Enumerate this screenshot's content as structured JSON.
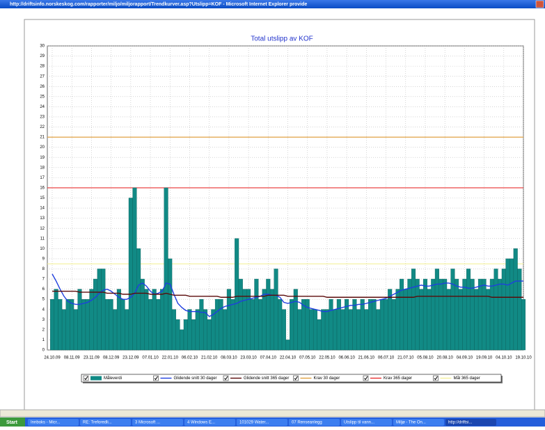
{
  "window": {
    "title": "http://driftsinfo.norskeskog.com/rapporter/miljo/miljorapport/Trendkurver.asp?Utslipp=KOF - Microsoft Internet Explorer provide"
  },
  "taskbar": {
    "start": "Start",
    "items": [
      "Innboks - Micr...",
      "RE: Treforedli...",
      "3 Microsoft ...",
      "4 Windows E...",
      "101029 Water...",
      "07 Renseanlegg",
      "Utslipp til vann...",
      "Miljø - The On...",
      "http://driftsi..."
    ]
  },
  "chart_data": {
    "type": "bar",
    "title": "Total utslipp av KOF",
    "categories": [
      "24.10.09",
      null,
      null,
      null,
      null,
      "08.11.09",
      null,
      null,
      null,
      null,
      "23.11.09",
      null,
      null,
      null,
      null,
      "08.12.09",
      null,
      null,
      null,
      null,
      "23.12.09",
      null,
      null,
      null,
      null,
      "07.01.10",
      null,
      null,
      null,
      null,
      "22.01.10",
      null,
      null,
      null,
      null,
      "06.02.10",
      null,
      null,
      null,
      null,
      "21.02.10",
      null,
      null,
      null,
      null,
      "08.03.10",
      null,
      null,
      null,
      null,
      "23.03.10",
      null,
      null,
      null,
      null,
      "07.04.10",
      null,
      null,
      null,
      null,
      "22.04.10",
      null,
      null,
      null,
      null,
      "07.05.10",
      null,
      null,
      null,
      null,
      "22.05.10",
      null,
      null,
      null,
      null,
      "06.06.10",
      null,
      null,
      null,
      null,
      "21.06.10",
      null,
      null,
      null,
      null,
      "06.07.10",
      null,
      null,
      null,
      null,
      "21.07.10",
      null,
      null,
      null,
      null,
      "05.08.10",
      null,
      null,
      null,
      null,
      "20.08.10",
      null,
      null,
      null,
      null,
      "04.09.10",
      null,
      null,
      null,
      null,
      "19.09.10",
      null,
      null,
      null,
      null,
      "04.10.10",
      null,
      null,
      null,
      null,
      "19.10.10"
    ],
    "series": [
      {
        "name": "Måleverdi",
        "type": "bar",
        "color": "#118a85",
        "values": [
          5,
          6,
          5,
          4,
          5,
          5,
          4,
          6,
          5,
          5,
          6,
          7,
          8,
          8,
          5,
          5,
          4,
          6,
          5,
          4,
          15,
          16,
          10,
          7,
          6,
          5,
          6,
          5,
          6,
          16,
          9,
          4,
          3,
          2,
          3,
          4,
          3,
          4,
          5,
          4,
          3,
          4,
          5,
          5,
          4,
          6,
          5,
          11,
          7,
          6,
          6,
          5,
          7,
          5,
          6,
          7,
          6,
          8,
          5,
          4,
          1,
          5,
          6,
          4,
          5,
          5,
          4,
          4,
          3,
          4,
          4,
          5,
          4,
          5,
          4,
          5,
          4,
          5,
          4,
          5,
          4,
          5,
          5,
          4,
          5,
          5,
          6,
          5,
          6,
          7,
          6,
          7,
          8,
          7,
          6,
          7,
          6,
          7,
          8,
          7,
          7,
          6,
          8,
          7,
          6,
          7,
          8,
          7,
          6,
          7,
          7,
          6,
          7,
          8,
          7,
          8,
          9,
          9,
          10,
          8,
          5
        ]
      },
      {
        "name": "Glidende snitt 30 dager",
        "type": "line",
        "color": "#1f3fe0",
        "values": [
          7.5,
          6.8,
          6,
          5.3,
          4.8,
          4.6,
          4.5,
          4.5,
          4.6,
          4.7,
          4.9,
          5.2,
          5.6,
          5.9,
          6,
          5.8,
          5.5,
          5.2,
          5,
          5,
          5.2,
          5.6,
          6.4,
          6.6,
          6.3,
          5.8,
          5.5,
          5.6,
          5.8,
          6.6,
          6.5,
          5.5,
          4.6,
          4.2,
          3.9,
          3.8,
          3.8,
          3.8,
          3.7,
          3.7,
          3.3,
          3.5,
          3.8,
          4.1,
          4.3,
          4.4,
          4.5,
          4.6,
          4.8,
          4.9,
          5,
          5.1,
          5.2,
          5.3,
          5.5,
          5.5,
          5.4,
          5.4,
          5.2,
          4.7,
          4.6,
          4.7,
          4.8,
          4.7,
          4.4,
          4.2,
          4.1,
          4,
          3.9,
          3.8,
          3.8,
          3.9,
          4,
          4.1,
          4.2,
          4.3,
          4.4,
          4.4,
          4.5,
          4.5,
          4.6,
          4.7,
          4.8,
          4.9,
          5,
          5.1,
          5.3,
          5.5,
          5.7,
          5.9,
          6,
          6.1,
          6.2,
          6.3,
          6.4,
          6.3,
          6.3,
          6.4,
          6.5,
          6.5,
          6.6,
          6.6,
          6.5,
          6.3,
          6.2,
          6.2,
          6.1,
          6.1,
          6.2,
          6.3,
          6.4,
          6.3,
          6.3,
          6.4,
          6.5,
          6.5,
          6.4,
          6.6,
          6.8,
          6.8,
          6.8
        ]
      },
      {
        "name": "Glidende snitt 365 dager",
        "type": "line",
        "color": "#5a0a0a",
        "values": [
          5.8,
          5.8,
          5.8,
          5.8,
          5.8,
          5.8,
          5.8,
          5.7,
          5.7,
          5.7,
          5.7,
          5.7,
          5.7,
          5.7,
          5.6,
          5.6,
          5.6,
          5.6,
          5.5,
          5.5,
          5.5,
          5.6,
          5.6,
          5.6,
          5.6,
          5.5,
          5.5,
          5.5,
          5.5,
          5.6,
          5.5,
          5.4,
          5.4,
          5.4,
          5.4,
          5.3,
          5.3,
          5.3,
          5.3,
          5.3,
          5.3,
          5.3,
          5.3,
          5.2,
          5.2,
          5.2,
          5.2,
          5.3,
          5.3,
          5.3,
          5.3,
          5.3,
          5.3,
          5.3,
          5.3,
          5.4,
          5.4,
          5.4,
          5.4,
          5.4,
          5.3,
          5.3,
          5.3,
          5.3,
          5.3,
          5.3,
          5.3,
          5.3,
          5.3,
          5.3,
          5.2,
          5.2,
          5.2,
          5.2,
          5.2,
          5.2,
          5.2,
          5.2,
          5.2,
          5.2,
          5.2,
          5.2,
          5.2,
          5.2,
          5.2,
          5.2,
          5.2,
          5.2,
          5.2,
          5.2,
          5.2,
          5.2,
          5.2,
          5.3,
          5.3,
          5.3,
          5.3,
          5.3,
          5.3,
          5.3,
          5.3,
          5.3,
          5.3,
          5.3,
          5.3,
          5.3,
          5.3,
          5.3,
          5.3,
          5.3,
          5.3,
          5.3,
          5.2,
          5.2,
          5.2,
          5.2,
          5.2,
          5.2,
          5.2,
          5.2,
          5.2
        ]
      },
      {
        "name": "Krav 30 dager",
        "type": "hline",
        "color": "#e0a040",
        "value": 21
      },
      {
        "name": "Krav 365 dager",
        "type": "hline",
        "color": "#e83030",
        "value": 16
      },
      {
        "name": "Mål 365 dager",
        "type": "hline",
        "color": "#f4f09a",
        "value": 8.5
      }
    ],
    "ylim": [
      0,
      30
    ],
    "yticks": [
      0,
      1,
      2,
      3,
      4,
      5,
      6,
      7,
      8,
      9,
      10,
      11,
      12,
      13,
      14,
      15,
      16,
      17,
      18,
      19,
      20,
      21,
      22,
      23,
      24,
      25,
      26,
      27,
      28,
      29,
      30
    ],
    "grid": true,
    "legend": "bottom"
  }
}
